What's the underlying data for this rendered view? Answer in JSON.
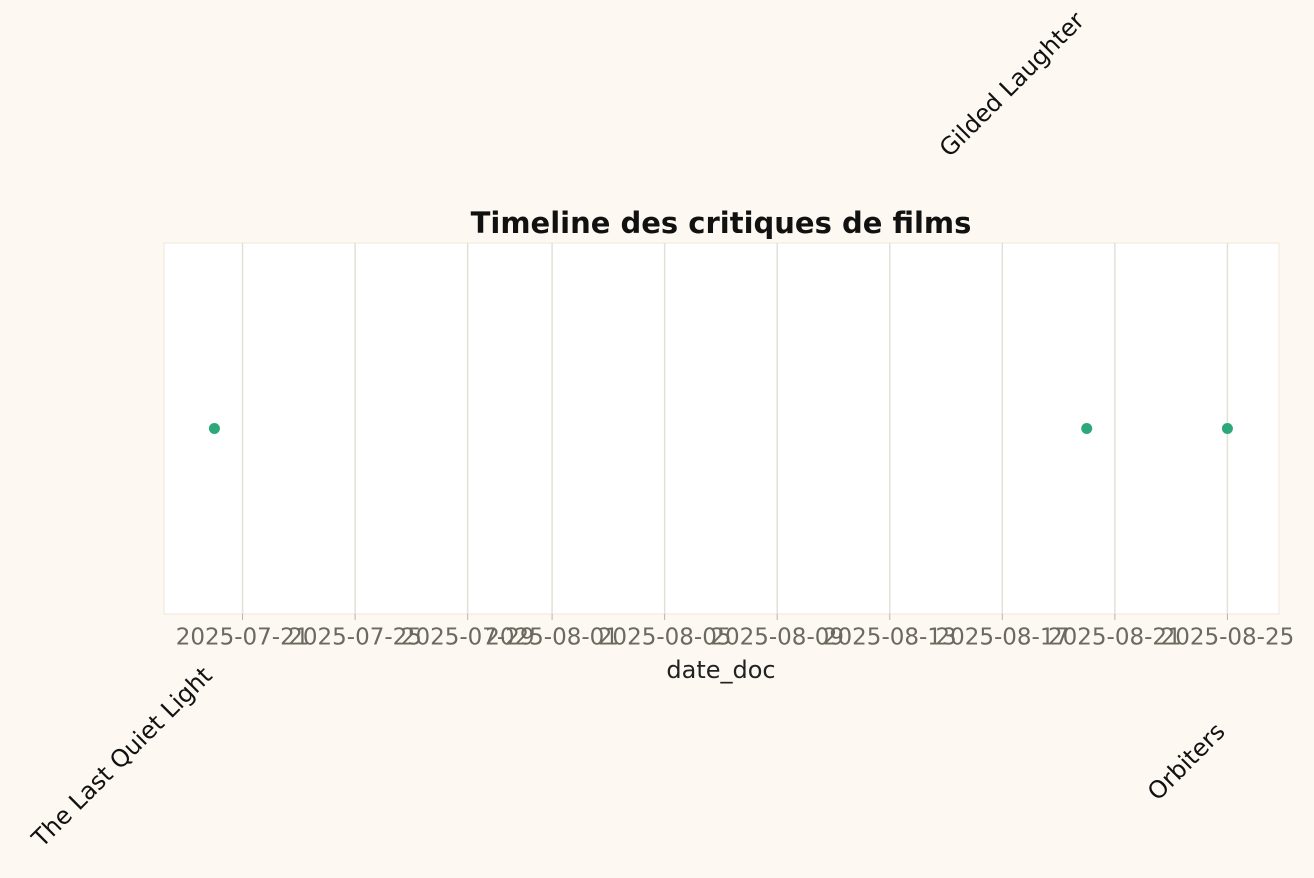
{
  "chart_data": {
    "type": "scatter",
    "title": "Timeline des critiques de films",
    "x_label": "date_doc",
    "color": "#2ca87a",
    "grid": true,
    "points": [
      {
        "label": "The Last Quiet Light",
        "x": "2025-07-20"
      },
      {
        "label": "Gilded Laughter",
        "x": "2025-08-20"
      },
      {
        "label": "Orbiters",
        "x": "2025-08-25"
      }
    ],
    "xlim": [
      "2025-07-18T05:00",
      "2025-08-26T20:00"
    ],
    "xticks": [
      "2025-07-21",
      "2025-07-25",
      "2025-07-29",
      "2025-08-01",
      "2025-08-05",
      "2025-08-09",
      "2025-08-13",
      "2025-08-17",
      "2025-08-21",
      "2025-08-25"
    ]
  }
}
